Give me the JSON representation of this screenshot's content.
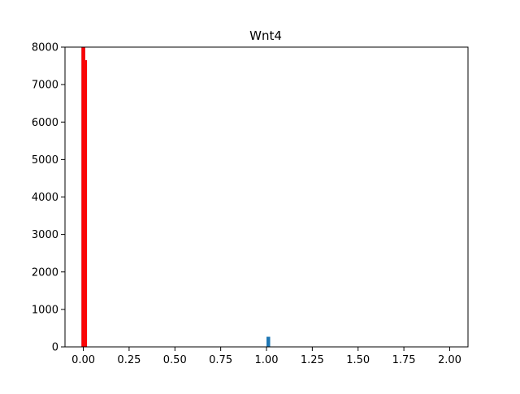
{
  "chart_data": {
    "type": "bar",
    "title": "Wnt4",
    "xlabel": "",
    "ylabel": "",
    "xlim": [
      -0.1,
      2.1
    ],
    "ylim": [
      0,
      8000
    ],
    "grid": false,
    "x_ticks": [
      0.0,
      0.25,
      0.5,
      0.75,
      1.0,
      1.25,
      1.5,
      1.75,
      2.0
    ],
    "x_tick_labels": [
      "0.00",
      "0.25",
      "0.50",
      "0.75",
      "1.00",
      "1.25",
      "1.50",
      "1.75",
      "2.00"
    ],
    "y_ticks": [
      0,
      1000,
      2000,
      3000,
      4000,
      5000,
      6000,
      7000,
      8000
    ],
    "y_tick_labels": [
      "0",
      "1000",
      "2000",
      "3000",
      "4000",
      "5000",
      "6000",
      "7000",
      "8000"
    ],
    "series": [
      {
        "color": "#1f77b4",
        "bins": [
          {
            "x0": -0.01,
            "x1": 0.0,
            "value": 8000
          },
          {
            "x0": 0.0,
            "x1": 0.01,
            "value": 8000
          },
          {
            "x0": 0.01,
            "x1": 0.02,
            "value": 7650
          },
          {
            "x0": 1.0,
            "x1": 1.02,
            "value": 270
          }
        ]
      },
      {
        "color": "#ff0000",
        "bins": [
          {
            "x0": -0.01,
            "x1": 0.0,
            "value": 8000
          },
          {
            "x0": 0.0,
            "x1": 0.01,
            "value": 8000
          },
          {
            "x0": 0.01,
            "x1": 0.02,
            "value": 7650
          }
        ]
      }
    ]
  }
}
